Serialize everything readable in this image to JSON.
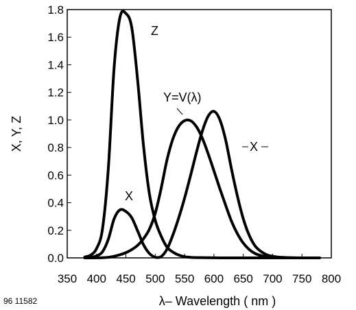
{
  "figure_id": "96 11582",
  "chart_data": {
    "type": "line",
    "title": "",
    "xlabel": "λ– Wavelength ( nm )",
    "ylabel": "X, Y, Z",
    "xlim": [
      350,
      800
    ],
    "ylim": [
      0,
      1.8
    ],
    "x_ticks": [
      "350",
      "400",
      "450",
      "500",
      "550",
      "600",
      "650",
      "700",
      "750",
      "800"
    ],
    "y_ticks": [
      "0.0",
      "0.2",
      "0.4",
      "0.6",
      "0.8",
      "1.0",
      "1.2",
      "1.4",
      "1.6",
      "1.8"
    ],
    "grid": false,
    "annotations": [
      {
        "text": "Z",
        "series": "z"
      },
      {
        "text": "Y=V(λ)",
        "series": "y"
      },
      {
        "text": "X",
        "series": "x-long"
      },
      {
        "text": "X",
        "series": "x-short"
      }
    ],
    "series": [
      {
        "id": "x",
        "x": [
          380,
          390,
          400,
          410,
          420,
          430,
          440,
          450,
          460,
          470,
          480,
          490,
          500,
          510,
          520,
          530,
          540,
          550,
          560,
          570,
          580,
          590,
          600,
          610,
          620,
          630,
          640,
          650,
          660,
          670,
          680,
          690,
          700,
          710,
          720,
          730,
          740,
          750,
          760,
          770,
          780
        ],
        "values": [
          0.0014,
          0.0042,
          0.0143,
          0.0435,
          0.1344,
          0.2839,
          0.3483,
          0.3362,
          0.2908,
          0.1954,
          0.0956,
          0.032,
          0.0049,
          0.0093,
          0.0633,
          0.1655,
          0.2904,
          0.4334,
          0.5945,
          0.7621,
          0.9163,
          1.0263,
          1.0622,
          1.0026,
          0.8544,
          0.6424,
          0.4479,
          0.2835,
          0.1649,
          0.0874,
          0.0468,
          0.0227,
          0.0114,
          0.0058,
          0.0029,
          0.0014,
          0.0007,
          0.0003,
          0.0002,
          0.0001,
          0.0
        ]
      },
      {
        "id": "y",
        "x": [
          380,
          390,
          400,
          410,
          420,
          430,
          440,
          450,
          460,
          470,
          480,
          490,
          500,
          510,
          520,
          530,
          540,
          550,
          560,
          570,
          580,
          590,
          600,
          610,
          620,
          630,
          640,
          650,
          660,
          670,
          680,
          690,
          700,
          710,
          720,
          730,
          740,
          750,
          760,
          770,
          780
        ],
        "values": [
          0.0,
          0.0001,
          0.0004,
          0.0012,
          0.004,
          0.0116,
          0.023,
          0.038,
          0.06,
          0.091,
          0.139,
          0.208,
          0.323,
          0.503,
          0.71,
          0.862,
          0.954,
          0.995,
          0.995,
          0.952,
          0.87,
          0.757,
          0.631,
          0.503,
          0.381,
          0.265,
          0.175,
          0.107,
          0.061,
          0.032,
          0.017,
          0.0082,
          0.0041,
          0.0021,
          0.001,
          0.0005,
          0.0003,
          0.0001,
          0.0001,
          0.0,
          0.0
        ]
      },
      {
        "id": "z",
        "x": [
          380,
          390,
          400,
          410,
          420,
          430,
          440,
          450,
          460,
          470,
          480,
          490,
          500,
          510,
          520,
          530,
          540,
          550,
          560,
          570,
          580,
          590,
          600,
          610,
          620,
          630,
          640,
          650,
          660,
          670,
          680,
          690,
          700,
          710,
          720,
          730,
          740,
          750,
          760,
          770,
          780
        ],
        "values": [
          0.0065,
          0.0201,
          0.0679,
          0.2074,
          0.6456,
          1.3856,
          1.7471,
          1.7721,
          1.6692,
          1.2876,
          0.813,
          0.4652,
          0.272,
          0.1582,
          0.0782,
          0.0422,
          0.0203,
          0.0087,
          0.0039,
          0.0021,
          0.0017,
          0.0011,
          0.0008,
          0.0003,
          0.0002,
          0.0,
          0.0,
          0.0,
          0.0,
          0.0,
          0.0,
          0.0,
          0.0,
          0.0,
          0.0,
          0.0,
          0.0,
          0.0,
          0.0,
          0.0,
          0.0
        ]
      }
    ]
  }
}
